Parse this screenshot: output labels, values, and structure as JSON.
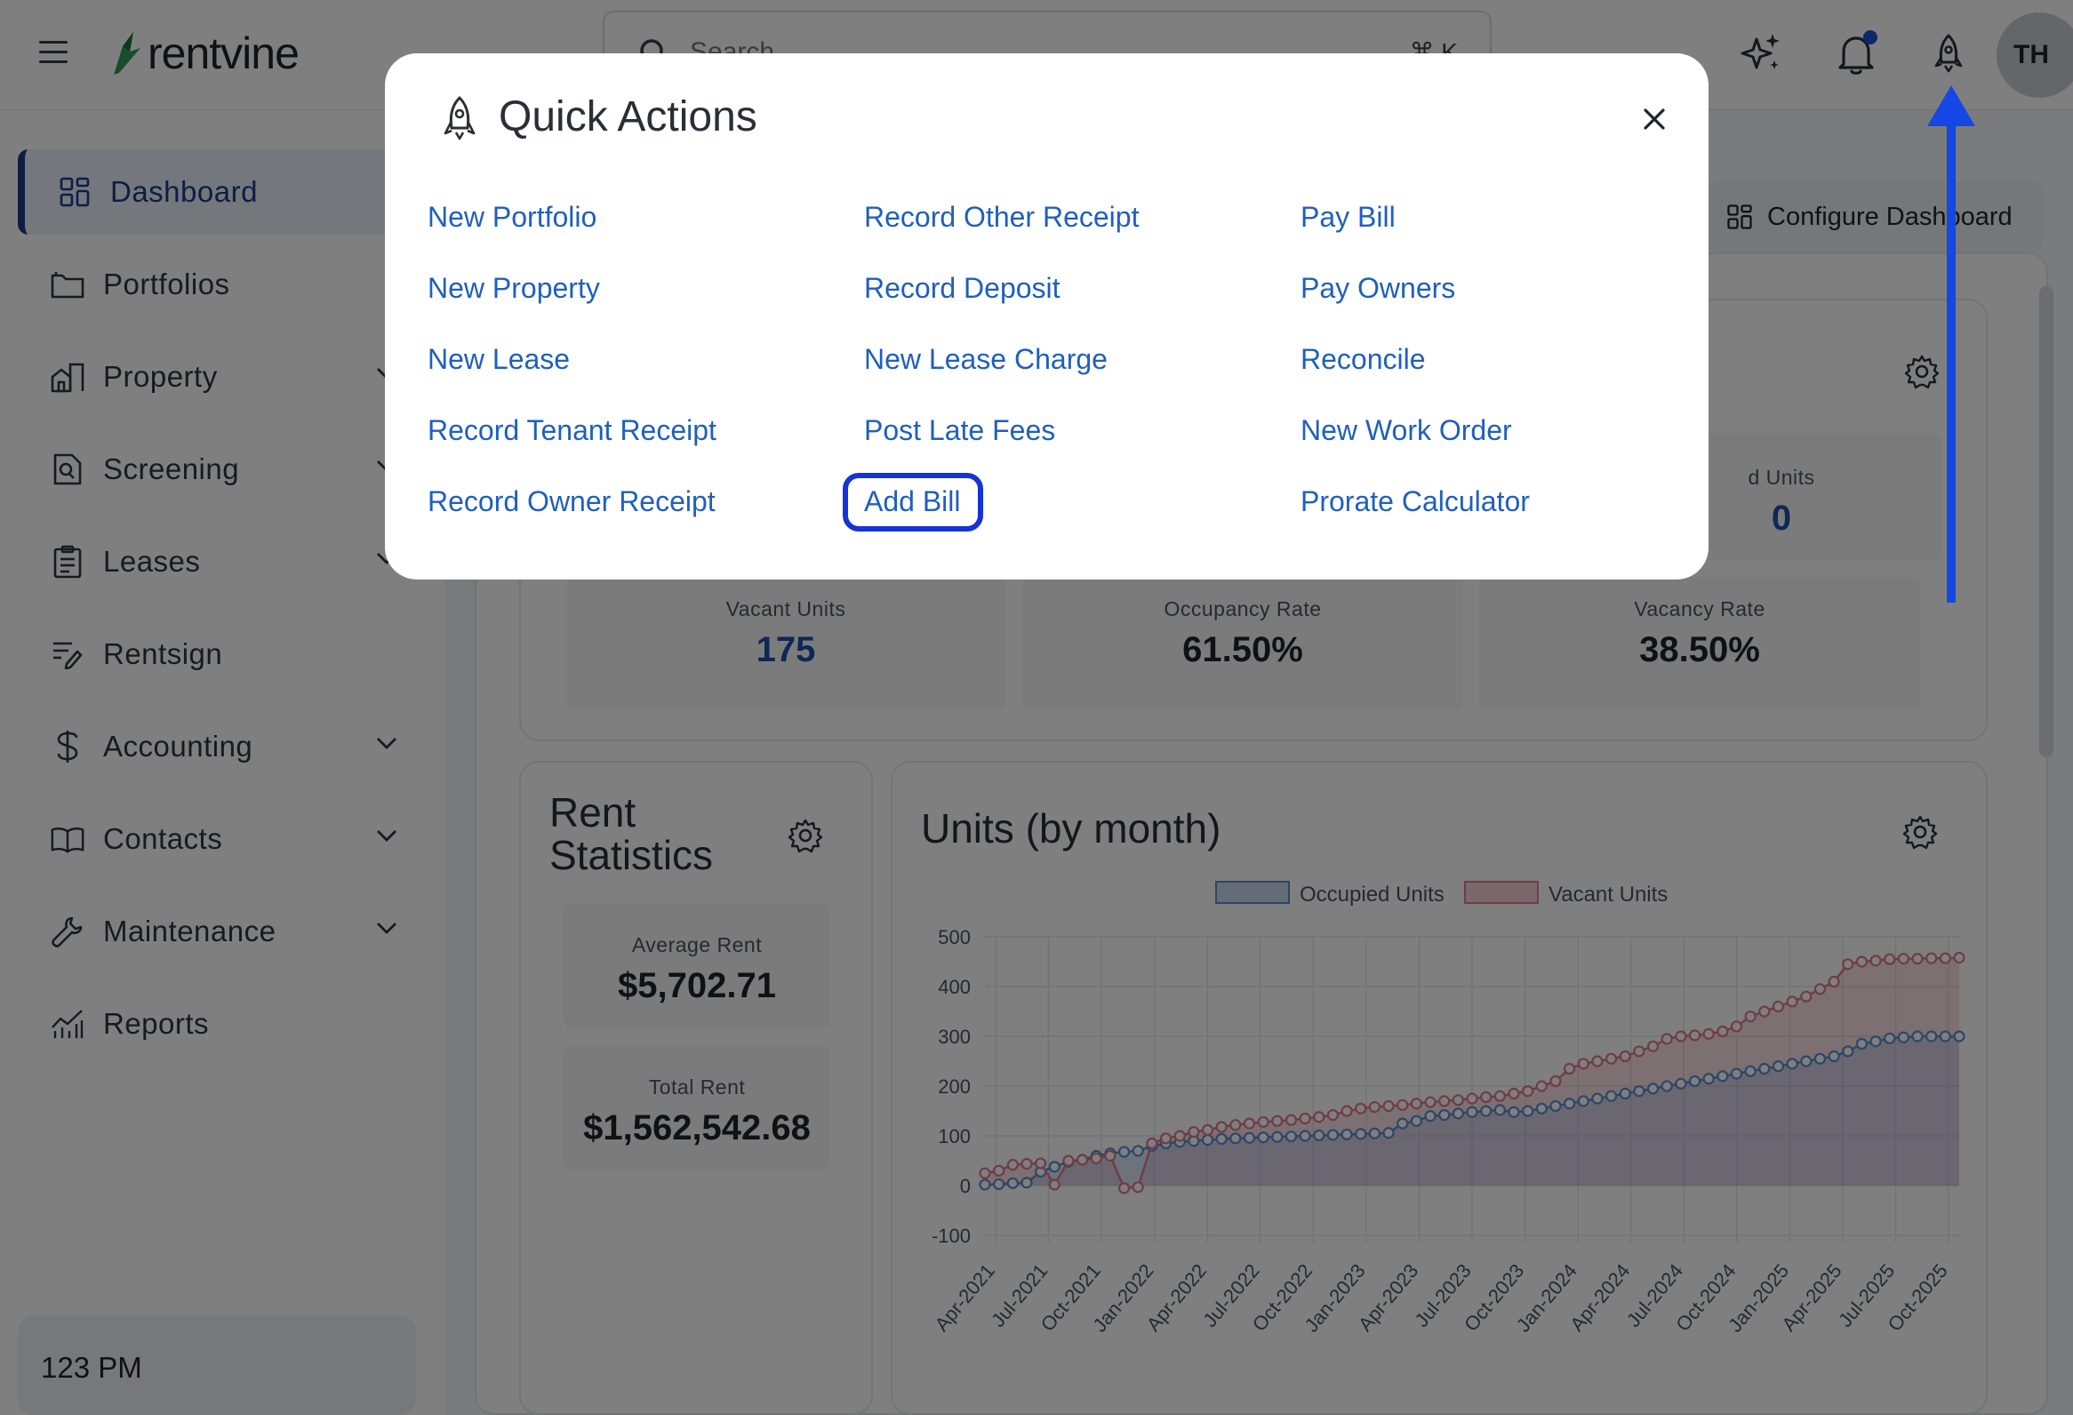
{
  "header": {
    "brand": "rentvine",
    "search_placeholder": "Search",
    "search_shortcut": "⌘ K",
    "avatar_initials": "TH",
    "icons": [
      "menu-icon",
      "sparkle-icon",
      "bell-icon",
      "rocket-icon"
    ]
  },
  "sidebar": {
    "items": [
      {
        "label": "Dashboard",
        "icon": "dashboard-icon",
        "active": true
      },
      {
        "label": "Portfolios",
        "icon": "folder-icon"
      },
      {
        "label": "Property",
        "icon": "property-icon",
        "expandable": true
      },
      {
        "label": "Screening",
        "icon": "screening-icon",
        "expandable": true
      },
      {
        "label": "Leases",
        "icon": "clipboard-icon",
        "expandable": true
      },
      {
        "label": "Rentsign",
        "icon": "sign-icon"
      },
      {
        "label": "Accounting",
        "icon": "dollar-icon",
        "expandable": true
      },
      {
        "label": "Contacts",
        "icon": "book-icon",
        "expandable": true
      },
      {
        "label": "Maintenance",
        "icon": "wrench-icon",
        "expandable": true
      },
      {
        "label": "Reports",
        "icon": "chart-icon"
      }
    ],
    "clock": "123 PM"
  },
  "main": {
    "configure_label": "Configure Dashboard",
    "units_card": {
      "partial_label": "d Units",
      "partial_value": "0",
      "stats": [
        {
          "label": "Vacant Units",
          "value": "175"
        },
        {
          "label": "Occupancy Rate",
          "value": "61.50%"
        },
        {
          "label": "Vacancy Rate",
          "value": "38.50%"
        }
      ]
    },
    "rent_card": {
      "title_line1": "Rent",
      "title_line2": "Statistics",
      "average_label": "Average Rent",
      "average_value": "$5,702.71",
      "total_label": "Total Rent",
      "total_value": "$1,562,542.68"
    },
    "chart_card": {
      "title": "Units (by month)"
    }
  },
  "modal": {
    "title": "Quick Actions",
    "columns": [
      [
        "New Portfolio",
        "New Property",
        "New Lease",
        "Record Tenant Receipt",
        "Record Owner Receipt"
      ],
      [
        "Record Other Receipt",
        "Record Deposit",
        "New Lease Charge",
        "Post Late Fees",
        "Add Bill"
      ],
      [
        "Pay Bill",
        "Pay Owners",
        "Reconcile",
        "New Work Order",
        "Prorate Calculator"
      ]
    ],
    "highlighted": "Add Bill"
  },
  "chart_data": {
    "type": "line",
    "title": "Units (by month)",
    "legend": [
      "Occupied Units",
      "Vacant Units"
    ],
    "legend_position": "top",
    "ylim": [
      -100,
      500
    ],
    "yticks": [
      -100,
      0,
      100,
      200,
      300,
      400,
      500
    ],
    "xtick_labels": [
      "Apr-2021",
      "Jul-2021",
      "Oct-2021",
      "Jan-2022",
      "Apr-2022",
      "Jul-2022",
      "Oct-2022",
      "Jan-2023",
      "Apr-2023",
      "Jul-2023",
      "Oct-2023",
      "Jan-2024",
      "Apr-2024",
      "Jul-2024",
      "Oct-2024",
      "Jan-2025",
      "Apr-2025",
      "Jul-2025",
      "Oct-2025"
    ],
    "grid": true,
    "colors": {
      "occupied": "#5b8fd1",
      "vacant": "#e0788f"
    },
    "series": [
      {
        "name": "Occupied Units",
        "values": [
          2,
          3,
          5,
          6,
          28,
          38,
          48,
          52,
          60,
          65,
          68,
          70,
          80,
          85,
          88,
          90,
          92,
          94,
          95,
          96,
          97,
          98,
          99,
          100,
          101,
          102,
          103,
          104,
          105,
          106,
          125,
          130,
          140,
          142,
          145,
          148,
          150,
          152,
          148,
          150,
          155,
          160,
          165,
          170,
          175,
          180,
          185,
          190,
          195,
          200,
          205,
          210,
          215,
          220,
          225,
          230,
          235,
          240,
          245,
          250,
          255,
          260,
          270,
          285,
          290,
          296,
          298,
          300,
          300,
          300,
          300
        ]
      },
      {
        "name": "Vacant Units",
        "values": [
          25,
          30,
          42,
          44,
          45,
          2,
          50,
          52,
          55,
          60,
          -5,
          -3,
          85,
          95,
          100,
          108,
          112,
          118,
          122,
          125,
          128,
          130,
          132,
          135,
          138,
          142,
          150,
          155,
          158,
          160,
          162,
          165,
          168,
          170,
          172,
          175,
          178,
          180,
          185,
          190,
          200,
          210,
          235,
          245,
          250,
          255,
          260,
          270,
          280,
          295,
          300,
          302,
          305,
          310,
          320,
          340,
          350,
          360,
          370,
          380,
          395,
          410,
          445,
          450,
          452,
          455,
          456,
          456,
          457,
          457,
          458
        ]
      }
    ]
  }
}
